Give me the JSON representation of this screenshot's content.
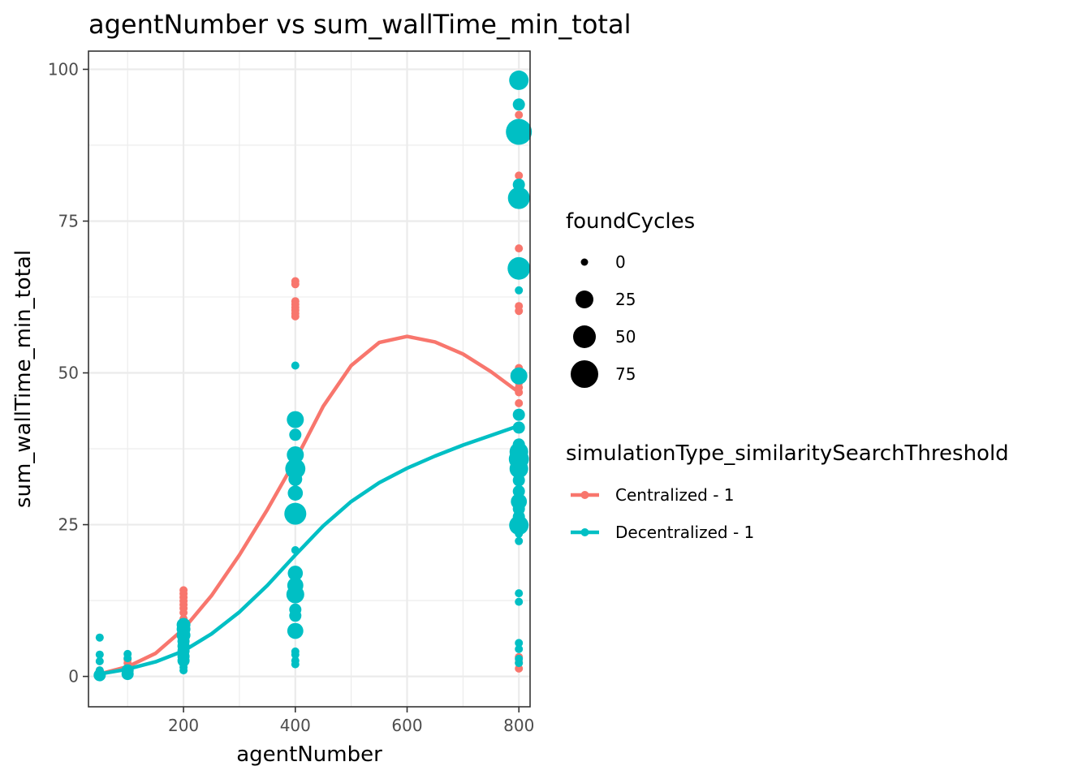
{
  "chart_data": {
    "type": "scatter",
    "title": "agentNumber  vs  sum_wallTime_min_total",
    "xlabel": "agentNumber",
    "ylabel": "sum_wallTime_min_total",
    "xlim": [
      30,
      820
    ],
    "ylim": [
      -5,
      103
    ],
    "x_ticks": [
      200,
      400,
      600,
      800
    ],
    "y_ticks": [
      0,
      25,
      50,
      75,
      100
    ],
    "grid": true,
    "legend_position": "right",
    "size_legend": {
      "title": "foundCycles",
      "entries": [
        {
          "label": "0",
          "value": 0
        },
        {
          "label": "25",
          "value": 25
        },
        {
          "label": "50",
          "value": 50
        },
        {
          "label": "75",
          "value": 75
        }
      ]
    },
    "color_legend": {
      "title": "simulationType_similaritySearchThreshold",
      "entries": [
        "Centralized - 1",
        "Decentralized - 1"
      ]
    },
    "series": [
      {
        "name": "Centralized - 1",
        "color": "#F8766D",
        "points": [
          {
            "x": 50,
            "y": 0.3,
            "size": 0
          },
          {
            "x": 50,
            "y": 0.7,
            "size": 0
          },
          {
            "x": 50,
            "y": 1.0,
            "size": 0
          },
          {
            "x": 100,
            "y": 0.9,
            "size": 0
          },
          {
            "x": 100,
            "y": 1.5,
            "size": 0
          },
          {
            "x": 100,
            "y": 2.2,
            "size": 0
          },
          {
            "x": 100,
            "y": 2.8,
            "size": 0
          },
          {
            "x": 200,
            "y": 6.5,
            "size": 0
          },
          {
            "x": 200,
            "y": 7.5,
            "size": 0
          },
          {
            "x": 200,
            "y": 8.5,
            "size": 0
          },
          {
            "x": 200,
            "y": 9.5,
            "size": 0
          },
          {
            "x": 200,
            "y": 10.5,
            "size": 0
          },
          {
            "x": 200,
            "y": 11.2,
            "size": 0
          },
          {
            "x": 200,
            "y": 11.8,
            "size": 0
          },
          {
            "x": 200,
            "y": 12.4,
            "size": 0
          },
          {
            "x": 200,
            "y": 13.0,
            "size": 0
          },
          {
            "x": 200,
            "y": 13.6,
            "size": 0
          },
          {
            "x": 200,
            "y": 14.2,
            "size": 0
          },
          {
            "x": 400,
            "y": 13.0,
            "size": 0
          },
          {
            "x": 400,
            "y": 16.5,
            "size": 0
          },
          {
            "x": 400,
            "y": 59.3,
            "size": 0
          },
          {
            "x": 400,
            "y": 59.8,
            "size": 0
          },
          {
            "x": 400,
            "y": 60.3,
            "size": 0
          },
          {
            "x": 400,
            "y": 60.8,
            "size": 0
          },
          {
            "x": 400,
            "y": 61.3,
            "size": 0
          },
          {
            "x": 400,
            "y": 61.8,
            "size": 0
          },
          {
            "x": 400,
            "y": 64.6,
            "size": 0
          },
          {
            "x": 400,
            "y": 65.1,
            "size": 0
          },
          {
            "x": 800,
            "y": 1.3,
            "size": 0
          },
          {
            "x": 800,
            "y": 2.3,
            "size": 0
          },
          {
            "x": 800,
            "y": 3.2,
            "size": 0
          },
          {
            "x": 800,
            "y": 45.0,
            "size": 0
          },
          {
            "x": 800,
            "y": 46.8,
            "size": 0
          },
          {
            "x": 800,
            "y": 47.6,
            "size": 0
          },
          {
            "x": 800,
            "y": 48.4,
            "size": 0
          },
          {
            "x": 800,
            "y": 49.2,
            "size": 0
          },
          {
            "x": 800,
            "y": 50.0,
            "size": 0
          },
          {
            "x": 800,
            "y": 50.8,
            "size": 0
          },
          {
            "x": 800,
            "y": 60.2,
            "size": 0
          },
          {
            "x": 800,
            "y": 61.0,
            "size": 0
          },
          {
            "x": 800,
            "y": 70.5,
            "size": 0
          },
          {
            "x": 800,
            "y": 82.5,
            "size": 0
          },
          {
            "x": 800,
            "y": 92.5,
            "size": 0
          }
        ],
        "trend": [
          {
            "x": 50,
            "y": 0.4
          },
          {
            "x": 100,
            "y": 1.6
          },
          {
            "x": 150,
            "y": 3.8
          },
          {
            "x": 200,
            "y": 7.8
          },
          {
            "x": 250,
            "y": 13.3
          },
          {
            "x": 300,
            "y": 20.0
          },
          {
            "x": 350,
            "y": 27.5
          },
          {
            "x": 400,
            "y": 35.6
          },
          {
            "x": 450,
            "y": 44.5
          },
          {
            "x": 500,
            "y": 51.2
          },
          {
            "x": 550,
            "y": 55.0
          },
          {
            "x": 600,
            "y": 56.0
          },
          {
            "x": 650,
            "y": 55.1
          },
          {
            "x": 700,
            "y": 53.1
          },
          {
            "x": 750,
            "y": 50.2
          },
          {
            "x": 800,
            "y": 46.8
          }
        ]
      },
      {
        "name": "Decentralized - 1",
        "color": "#00BFC4",
        "points": [
          {
            "x": 50,
            "y": 0.2,
            "size": 5
          },
          {
            "x": 50,
            "y": 1.0,
            "size": 0
          },
          {
            "x": 50,
            "y": 2.5,
            "size": 0
          },
          {
            "x": 50,
            "y": 3.6,
            "size": 0
          },
          {
            "x": 50,
            "y": 6.4,
            "size": 0
          },
          {
            "x": 100,
            "y": 0.4,
            "size": 5
          },
          {
            "x": 100,
            "y": 1.0,
            "size": 5
          },
          {
            "x": 100,
            "y": 3.0,
            "size": 0
          },
          {
            "x": 100,
            "y": 3.7,
            "size": 0
          },
          {
            "x": 200,
            "y": 1.0,
            "size": 0
          },
          {
            "x": 200,
            "y": 1.5,
            "size": 0
          },
          {
            "x": 200,
            "y": 2.0,
            "size": 0
          },
          {
            "x": 200,
            "y": 2.6,
            "size": 5
          },
          {
            "x": 200,
            "y": 3.3,
            "size": 5
          },
          {
            "x": 200,
            "y": 4.2,
            "size": 5
          },
          {
            "x": 200,
            "y": 5.0,
            "size": 5
          },
          {
            "x": 200,
            "y": 5.8,
            "size": 5
          },
          {
            "x": 200,
            "y": 6.8,
            "size": 10
          },
          {
            "x": 200,
            "y": 7.8,
            "size": 10
          },
          {
            "x": 200,
            "y": 8.5,
            "size": 10
          },
          {
            "x": 400,
            "y": 2.0,
            "size": 0
          },
          {
            "x": 400,
            "y": 2.6,
            "size": 0
          },
          {
            "x": 400,
            "y": 3.6,
            "size": 0
          },
          {
            "x": 400,
            "y": 4.1,
            "size": 0
          },
          {
            "x": 400,
            "y": 7.5,
            "size": 20
          },
          {
            "x": 400,
            "y": 10.0,
            "size": 5
          },
          {
            "x": 400,
            "y": 11.0,
            "size": 5
          },
          {
            "x": 400,
            "y": 13.5,
            "size": 30
          },
          {
            "x": 400,
            "y": 15.0,
            "size": 20
          },
          {
            "x": 400,
            "y": 17.0,
            "size": 15
          },
          {
            "x": 400,
            "y": 20.8,
            "size": 0
          },
          {
            "x": 400,
            "y": 26.8,
            "size": 60
          },
          {
            "x": 400,
            "y": 30.2,
            "size": 15
          },
          {
            "x": 400,
            "y": 32.5,
            "size": 10
          },
          {
            "x": 400,
            "y": 34.2,
            "size": 45
          },
          {
            "x": 400,
            "y": 36.5,
            "size": 25
          },
          {
            "x": 400,
            "y": 39.8,
            "size": 5
          },
          {
            "x": 400,
            "y": 42.3,
            "size": 25
          },
          {
            "x": 400,
            "y": 51.2,
            "size": 0
          },
          {
            "x": 800,
            "y": 2.2,
            "size": 0
          },
          {
            "x": 800,
            "y": 2.9,
            "size": 0
          },
          {
            "x": 800,
            "y": 4.5,
            "size": 0
          },
          {
            "x": 800,
            "y": 5.5,
            "size": 0
          },
          {
            "x": 800,
            "y": 12.3,
            "size": 0
          },
          {
            "x": 800,
            "y": 13.7,
            "size": 0
          },
          {
            "x": 800,
            "y": 22.3,
            "size": 0
          },
          {
            "x": 800,
            "y": 23.5,
            "size": 0
          },
          {
            "x": 800,
            "y": 24.9,
            "size": 40
          },
          {
            "x": 800,
            "y": 26.3,
            "size": 5
          },
          {
            "x": 800,
            "y": 27.6,
            "size": 5
          },
          {
            "x": 800,
            "y": 28.8,
            "size": 20
          },
          {
            "x": 800,
            "y": 30.5,
            "size": 5
          },
          {
            "x": 800,
            "y": 32.3,
            "size": 5
          },
          {
            "x": 800,
            "y": 34.2,
            "size": 35
          },
          {
            "x": 800,
            "y": 35.8,
            "size": 45
          },
          {
            "x": 800,
            "y": 37.0,
            "size": 35
          },
          {
            "x": 800,
            "y": 38.2,
            "size": 5
          },
          {
            "x": 800,
            "y": 41.0,
            "size": 5
          },
          {
            "x": 800,
            "y": 43.1,
            "size": 5
          },
          {
            "x": 800,
            "y": 49.5,
            "size": 25
          },
          {
            "x": 800,
            "y": 63.6,
            "size": 0
          },
          {
            "x": 800,
            "y": 66.5,
            "size": 0
          },
          {
            "x": 800,
            "y": 67.2,
            "size": 65
          },
          {
            "x": 800,
            "y": 78.8,
            "size": 60
          },
          {
            "x": 800,
            "y": 81.0,
            "size": 5
          },
          {
            "x": 800,
            "y": 89.7,
            "size": 100
          },
          {
            "x": 800,
            "y": 94.2,
            "size": 5
          },
          {
            "x": 800,
            "y": 98.2,
            "size": 40
          }
        ],
        "trend": [
          {
            "x": 50,
            "y": 0.4
          },
          {
            "x": 100,
            "y": 1.2
          },
          {
            "x": 150,
            "y": 2.4
          },
          {
            "x": 200,
            "y": 4.2
          },
          {
            "x": 250,
            "y": 7.0
          },
          {
            "x": 300,
            "y": 10.6
          },
          {
            "x": 350,
            "y": 15.0
          },
          {
            "x": 400,
            "y": 20.0
          },
          {
            "x": 450,
            "y": 24.8
          },
          {
            "x": 500,
            "y": 28.8
          },
          {
            "x": 550,
            "y": 31.9
          },
          {
            "x": 600,
            "y": 34.3
          },
          {
            "x": 650,
            "y": 36.3
          },
          {
            "x": 700,
            "y": 38.1
          },
          {
            "x": 750,
            "y": 39.7
          },
          {
            "x": 800,
            "y": 41.3
          }
        ]
      }
    ]
  }
}
